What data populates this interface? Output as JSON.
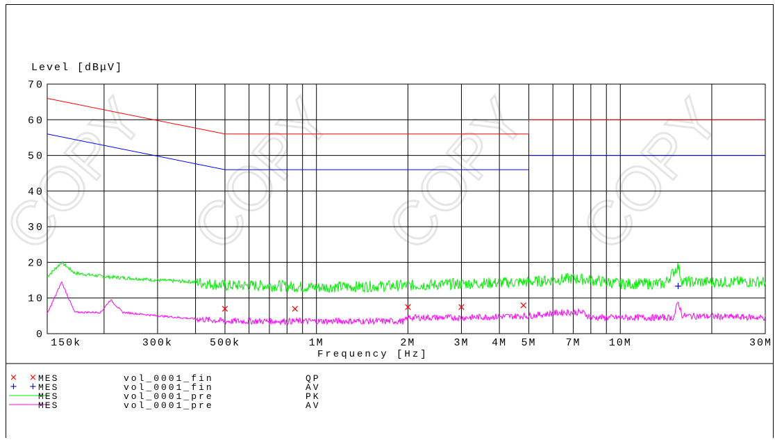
{
  "chart_data": {
    "type": "line",
    "title": "",
    "ylabel": "Level [dBμV]",
    "xlabel": "Frequency [Hz]",
    "x_scale": "log",
    "xlim": [
      130000,
      30000000
    ],
    "ylim": [
      0,
      70
    ],
    "y_ticks": [
      0,
      10,
      20,
      30,
      40,
      50,
      60,
      70
    ],
    "x_tick_labels": [
      {
        "f": 150000,
        "label": "150k"
      },
      {
        "f": 300000,
        "label": "300k"
      },
      {
        "f": 500000,
        "label": "500k"
      },
      {
        "f": 1000000,
        "label": "1M"
      },
      {
        "f": 2000000,
        "label": "2M"
      },
      {
        "f": 3000000,
        "label": "3M"
      },
      {
        "f": 4000000,
        "label": "4M"
      },
      {
        "f": 5000000,
        "label": "5M"
      },
      {
        "f": 7000000,
        "label": "7M"
      },
      {
        "f": 10000000,
        "label": "10M"
      },
      {
        "f": 30000000,
        "label": "30M"
      }
    ],
    "limit_lines": [
      {
        "color": "#ff0000",
        "points": [
          [
            130000,
            66
          ],
          [
            500000,
            56
          ],
          [
            5000000,
            56
          ],
          [
            5000000,
            60
          ],
          [
            30000000,
            60
          ]
        ]
      },
      {
        "color": "#0000ff",
        "points": [
          [
            130000,
            56
          ],
          [
            500000,
            46
          ],
          [
            5000000,
            46
          ],
          [
            5000000,
            50
          ],
          [
            30000000,
            50
          ]
        ]
      }
    ],
    "qp_final_points": [
      [
        500000,
        7
      ],
      [
        850000,
        7
      ],
      [
        2000000,
        7.5
      ],
      [
        3000000,
        7.5
      ],
      [
        4800000,
        8
      ]
    ],
    "av_final_points": [
      [
        15500000,
        13.5
      ]
    ],
    "pk_trace": {
      "color": "#00ee00",
      "points": [
        [
          130000,
          16
        ],
        [
          145000,
          20
        ],
        [
          160000,
          17
        ],
        [
          200000,
          16
        ],
        [
          250000,
          15.5
        ],
        [
          300000,
          15
        ],
        [
          400000,
          14.5
        ],
        [
          500000,
          13.5
        ],
        [
          700000,
          13.5
        ],
        [
          1000000,
          13
        ],
        [
          2000000,
          13.5
        ],
        [
          3000000,
          14
        ],
        [
          5000000,
          14.5
        ],
        [
          7000000,
          15.5
        ],
        [
          8000000,
          15
        ],
        [
          10000000,
          14
        ],
        [
          14000000,
          14
        ],
        [
          15500000,
          19
        ],
        [
          16000000,
          14.5
        ],
        [
          20000000,
          14.5
        ],
        [
          30000000,
          14.5
        ]
      ]
    },
    "av_trace": {
      "color": "#ff00ff",
      "points": [
        [
          130000,
          5.5
        ],
        [
          145000,
          14.5
        ],
        [
          160000,
          6
        ],
        [
          195000,
          6
        ],
        [
          210000,
          9.5
        ],
        [
          230000,
          6
        ],
        [
          300000,
          5
        ],
        [
          500000,
          3.5
        ],
        [
          1000000,
          3.5
        ],
        [
          1950000,
          3.5
        ],
        [
          2000000,
          4.5
        ],
        [
          3000000,
          4.5
        ],
        [
          5000000,
          5
        ],
        [
          6500000,
          6
        ],
        [
          7500000,
          6
        ],
        [
          8000000,
          4.5
        ],
        [
          10000000,
          4.5
        ],
        [
          15000000,
          4.5
        ],
        [
          15500000,
          9
        ],
        [
          16000000,
          5
        ],
        [
          30000000,
          4.5
        ]
      ]
    }
  },
  "legend": [
    {
      "marker": "×",
      "marker_color": "#ff0000",
      "symbol": "×",
      "name": "MES",
      "dataset": "vol_0001_fin",
      "detector": "QP"
    },
    {
      "marker": "+",
      "marker_color": "#0000ff",
      "symbol": "+",
      "name": "MES",
      "dataset": "vol_0001_fin",
      "detector": "AV"
    },
    {
      "marker": "",
      "marker_color": "#00ee00",
      "symbol": "",
      "name": "MES",
      "dataset": "vol_0001_pre",
      "detector": "PK"
    },
    {
      "marker": "",
      "marker_color": "#ff00ff",
      "symbol": "",
      "name": "MES",
      "dataset": "vol_0001_pre",
      "detector": "AV"
    }
  ],
  "watermark": "COPY"
}
